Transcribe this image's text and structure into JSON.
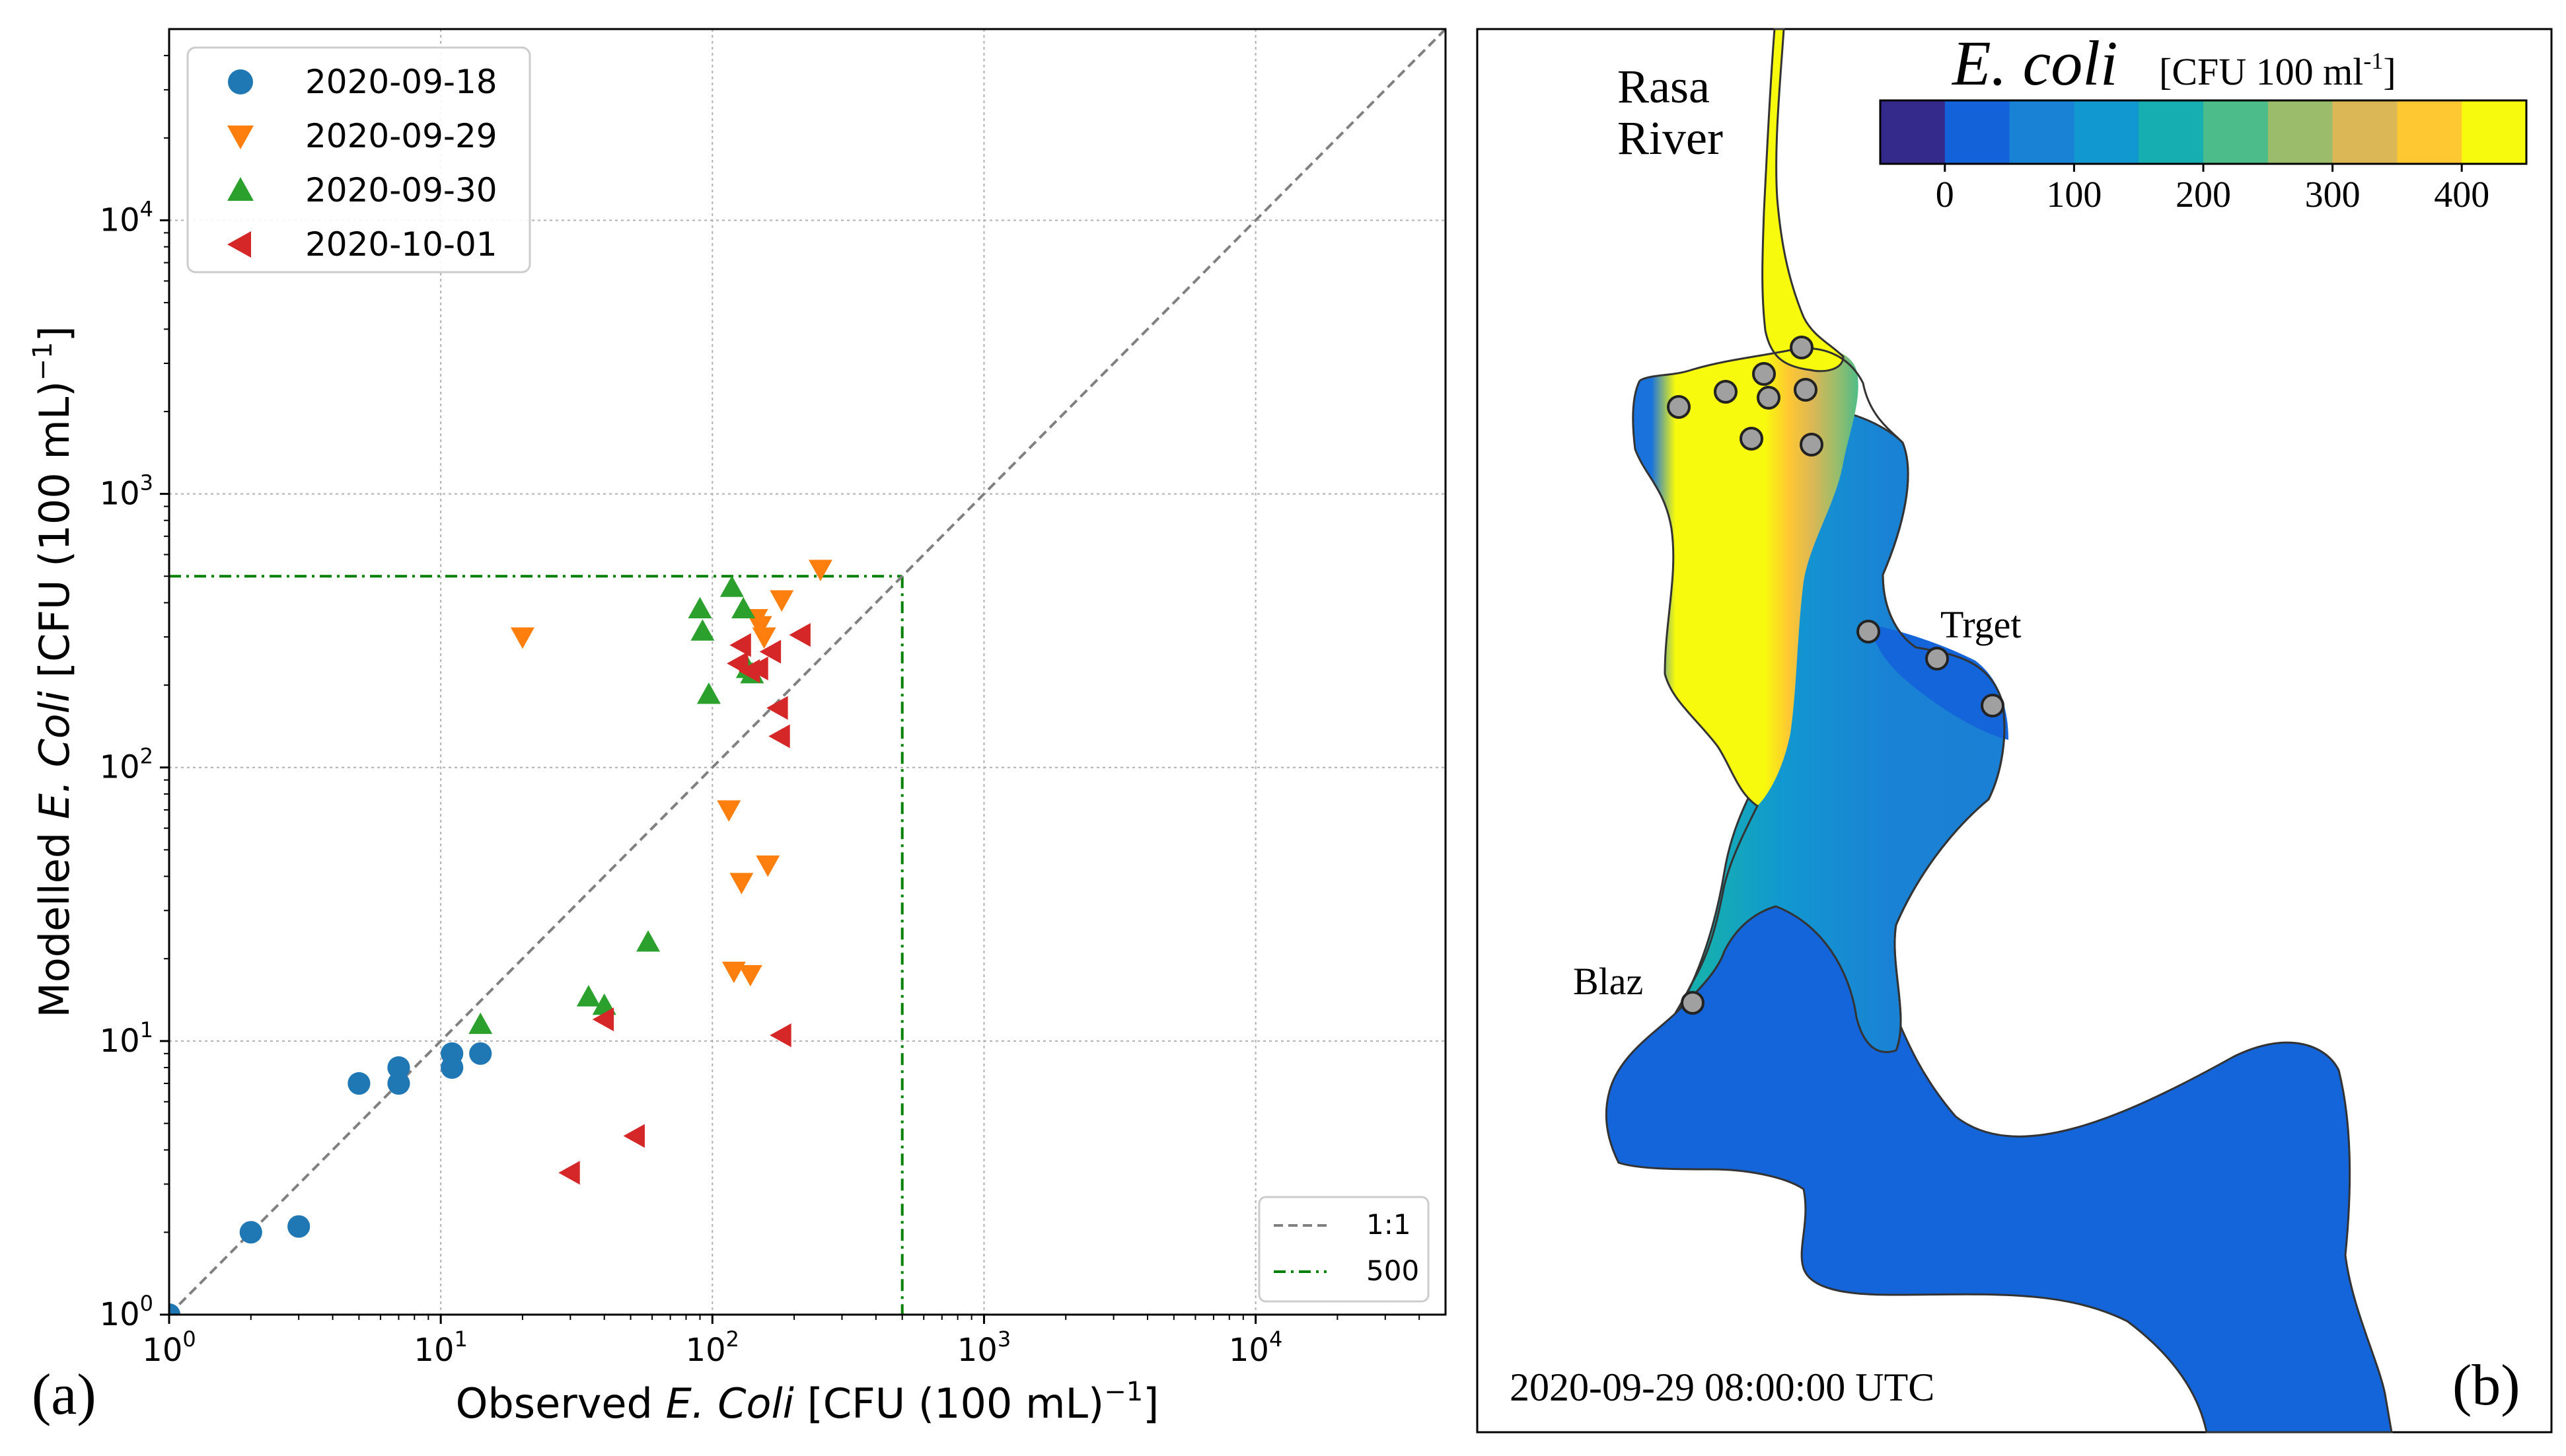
{
  "panel_a": {
    "label": "(a)",
    "chart_data": {
      "type": "scatter",
      "xscale": "log",
      "yscale": "log",
      "xlim": [
        1,
        50000
      ],
      "ylim": [
        1,
        50000
      ],
      "xlabel": "Observed E. Coli [CFU (100 mL)⁻¹]",
      "xlabel_parts": [
        "Observed ",
        "E. Coli",
        " [CFU (100 mL)",
        "−1",
        "]"
      ],
      "ylabel": "Modelled E. Coli [CFU (100 mL)⁻¹]",
      "ylabel_parts": [
        "Modelled ",
        "E. Coli",
        " [CFU (100 mL)",
        "−1",
        "]"
      ],
      "ticks": [
        {
          "value": 1,
          "mant": "10",
          "exp": "0"
        },
        {
          "value": 10,
          "mant": "10",
          "exp": "1"
        },
        {
          "value": 100,
          "mant": "10",
          "exp": "2"
        },
        {
          "value": 1000,
          "mant": "10",
          "exp": "3"
        },
        {
          "value": 10000,
          "mant": "10",
          "exp": "4"
        }
      ],
      "grid": true,
      "threshold": 500,
      "legend_placement": "top-left",
      "series": [
        {
          "name": "2020-09-18",
          "marker": "circle",
          "color": "#1f77b4",
          "x": [
            1,
            2,
            3,
            5,
            7,
            7,
            11,
            11,
            14
          ],
          "y": [
            1,
            2,
            2.1,
            7,
            7,
            8,
            8,
            9,
            9
          ]
        },
        {
          "name": "2020-09-29",
          "marker": "triangle-down",
          "color": "#ff7f0e",
          "x": [
            20,
            115,
            128,
            160,
            120,
            138,
            150,
            180,
            250,
            155,
            145
          ],
          "y": [
            300,
            70,
            38,
            44,
            18,
            17.5,
            330,
            410,
            530,
            300,
            350
          ]
        },
        {
          "name": "2020-09-30",
          "marker": "triangle-up",
          "color": "#2ca02c",
          "x": [
            14,
            35,
            40,
            58,
            90,
            92,
            97,
            118,
            130,
            135,
            140
          ],
          "y": [
            11.5,
            14.5,
            13.5,
            23,
            380,
            315,
            185,
            455,
            380,
            230,
            220
          ]
        },
        {
          "name": "2020-10-01",
          "marker": "triangle-left",
          "color": "#d62728",
          "x": [
            30,
            40,
            52,
            125,
            128,
            138,
            148,
            165,
            178,
            175,
            180,
            212
          ],
          "y": [
            3.3,
            12,
            4.5,
            240,
            280,
            225,
            230,
            265,
            130,
            165,
            10.5,
            305
          ]
        }
      ],
      "reference_lines": [
        {
          "name": "1:1",
          "style": "dashed",
          "color": "#808080"
        },
        {
          "name": "500",
          "style": "dashdot",
          "color": "#008000"
        }
      ]
    }
  },
  "panel_b": {
    "label": "(b)",
    "river_label_line1": "Rasa",
    "river_label_line2": "River",
    "colorbar_title_italic": "E. coli",
    "colorbar_units_text": "[CFU 100 ml",
    "colorbar_units_sup": "-1",
    "colorbar_units_close": "]",
    "colorbar_colors": [
      "#332a8c",
      "#1462d9",
      "#1a82d4",
      "#1198d0",
      "#16aeb0",
      "#4cbc8a",
      "#9bbd6b",
      "#dcb755",
      "#fec832",
      "#f8fa0d"
    ],
    "colorbar_min": -50,
    "colorbar_max": 450,
    "colorbar_ticks": [
      {
        "value": 0,
        "label": "0"
      },
      {
        "value": 100,
        "label": "100"
      },
      {
        "value": 200,
        "label": "200"
      },
      {
        "value": 300,
        "label": "300"
      },
      {
        "value": 400,
        "label": "400"
      }
    ],
    "stations": [
      {
        "name": "Trget"
      },
      {
        "name": "Blaz"
      }
    ],
    "timestamp": "2020-09-29  08:00:00 UTC"
  }
}
